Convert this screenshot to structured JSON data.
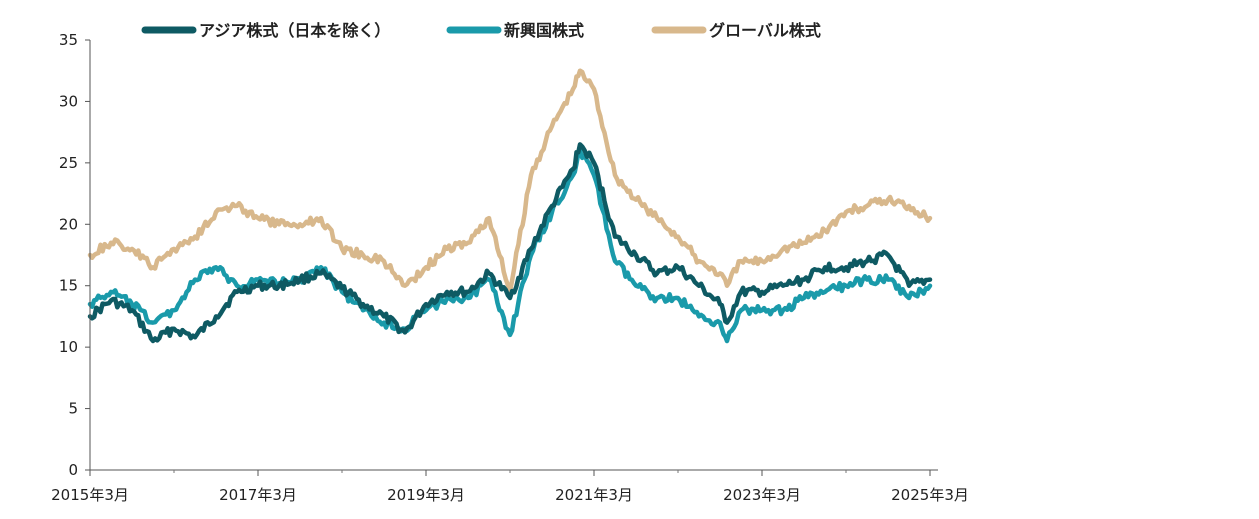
{
  "chart_data": {
    "type": "line",
    "title": "",
    "xlabel": "",
    "ylabel": "",
    "ylim": [
      0,
      35
    ],
    "yticks": [
      0,
      5,
      10,
      15,
      20,
      25,
      30,
      35
    ],
    "xticks": [
      "2015年3月",
      "2017年3月",
      "2019年3月",
      "2021年3月",
      "2023年3月",
      "2025年3月"
    ],
    "xlim": [
      "2015-03",
      "2025-03"
    ],
    "grid": false,
    "legend_position": "top",
    "series": [
      {
        "name": "アジア株式（日本を除く）",
        "color": "#0e5a63",
        "x": [
          "2015-03",
          "2015-06",
          "2015-09",
          "2015-12",
          "2016-03",
          "2016-06",
          "2016-09",
          "2016-12",
          "2017-03",
          "2017-06",
          "2017-09",
          "2017-12",
          "2018-03",
          "2018-06",
          "2018-09",
          "2018-12",
          "2019-03",
          "2019-06",
          "2019-09",
          "2019-12",
          "2020-03",
          "2020-06",
          "2020-09",
          "2020-12",
          "2021-01",
          "2021-03",
          "2021-06",
          "2021-09",
          "2021-12",
          "2022-03",
          "2022-06",
          "2022-09",
          "2022-10",
          "2022-12",
          "2023-03",
          "2023-06",
          "2023-09",
          "2023-12",
          "2024-03",
          "2024-06",
          "2024-09",
          "2024-12",
          "2025-03"
        ],
        "values": [
          12.5,
          13.8,
          13.0,
          10.5,
          11.5,
          10.8,
          12.5,
          14.5,
          15.0,
          15.0,
          15.5,
          16.0,
          14.8,
          13.5,
          12.5,
          11.2,
          13.5,
          14.5,
          14.5,
          16.0,
          14.0,
          18.0,
          21.5,
          24.5,
          26.5,
          25.0,
          19.0,
          17.5,
          16.0,
          16.5,
          15.0,
          13.5,
          12.0,
          14.5,
          14.5,
          15.0,
          15.5,
          16.5,
          16.5,
          17.0,
          17.5,
          15.0,
          15.5
        ]
      },
      {
        "name": "新興国株式",
        "color": "#1a9aaa",
        "x": [
          "2015-03",
          "2015-06",
          "2015-09",
          "2015-12",
          "2016-03",
          "2016-06",
          "2016-09",
          "2016-12",
          "2017-03",
          "2017-06",
          "2017-09",
          "2017-12",
          "2018-03",
          "2018-06",
          "2018-09",
          "2018-12",
          "2019-03",
          "2019-06",
          "2019-09",
          "2019-12",
          "2020-03",
          "2020-06",
          "2020-09",
          "2020-12",
          "2021-01",
          "2021-03",
          "2021-06",
          "2021-09",
          "2021-12",
          "2022-03",
          "2022-06",
          "2022-09",
          "2022-10",
          "2022-12",
          "2023-03",
          "2023-06",
          "2023-09",
          "2023-12",
          "2024-03",
          "2024-06",
          "2024-09",
          "2024-12",
          "2025-03"
        ],
        "values": [
          13.5,
          14.5,
          13.5,
          12.0,
          13.0,
          15.5,
          16.5,
          15.0,
          15.5,
          15.2,
          15.5,
          16.5,
          14.5,
          13.0,
          12.0,
          11.5,
          13.0,
          14.0,
          14.0,
          15.5,
          11.0,
          17.5,
          21.0,
          24.0,
          26.0,
          24.0,
          17.0,
          15.0,
          14.0,
          14.0,
          12.5,
          12.0,
          10.5,
          13.0,
          13.0,
          13.0,
          14.0,
          14.5,
          15.0,
          15.5,
          15.5,
          14.0,
          15.0
        ]
      },
      {
        "name": "グローバル株式",
        "color": "#d8b88c",
        "x": [
          "2015-03",
          "2015-06",
          "2015-09",
          "2015-12",
          "2016-03",
          "2016-06",
          "2016-09",
          "2016-12",
          "2017-03",
          "2017-06",
          "2017-09",
          "2017-12",
          "2018-03",
          "2018-06",
          "2018-09",
          "2018-12",
          "2019-03",
          "2019-06",
          "2019-09",
          "2019-12",
          "2020-03",
          "2020-06",
          "2020-09",
          "2020-12",
          "2021-01",
          "2021-03",
          "2021-06",
          "2021-09",
          "2021-12",
          "2022-03",
          "2022-06",
          "2022-09",
          "2022-10",
          "2022-12",
          "2023-03",
          "2023-06",
          "2023-09",
          "2023-12",
          "2024-03",
          "2024-06",
          "2024-09",
          "2024-12",
          "2025-03"
        ],
        "values": [
          17.5,
          18.5,
          18.0,
          16.5,
          18.0,
          19.0,
          21.0,
          21.5,
          20.5,
          20.0,
          20.0,
          20.5,
          18.0,
          17.5,
          17.0,
          15.0,
          16.5,
          18.0,
          18.5,
          20.5,
          14.5,
          24.0,
          28.0,
          31.0,
          32.5,
          31.0,
          24.0,
          22.0,
          20.5,
          19.0,
          17.0,
          16.0,
          15.0,
          17.0,
          17.0,
          18.0,
          18.5,
          19.5,
          21.0,
          21.5,
          22.0,
          21.5,
          20.5
        ]
      }
    ]
  }
}
